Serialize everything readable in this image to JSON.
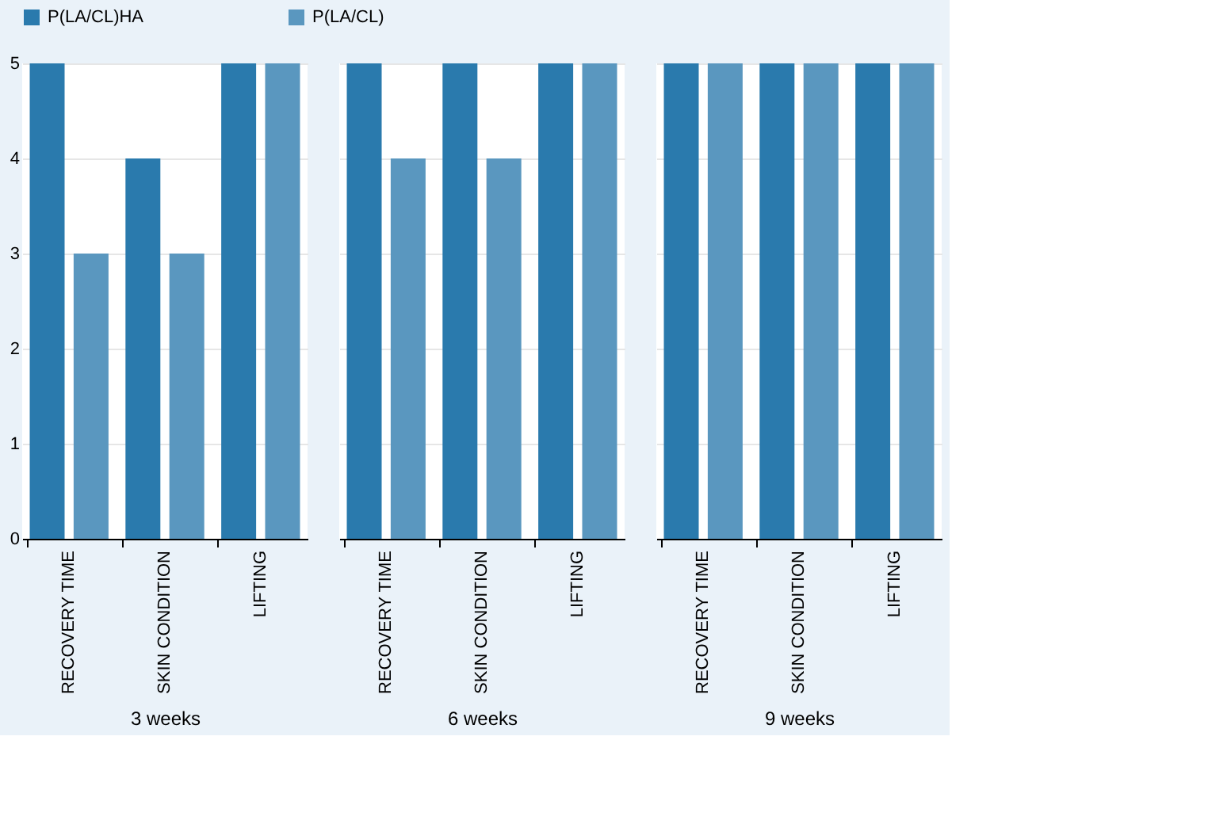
{
  "chart_data": [
    {
      "type": "bar",
      "xlabel": "3 weeks",
      "categories": [
        "RECOVERY TIME",
        "SKIN CONDITION",
        "LIFTING"
      ],
      "series": [
        {
          "name": "P(LA/CL)HA",
          "color": "#2a7aad",
          "values": [
            5,
            4,
            5
          ]
        },
        {
          "name": "P(LA/CL)",
          "color": "#5a97bf",
          "values": [
            3,
            3,
            5
          ]
        }
      ],
      "ylim": [
        0,
        5
      ],
      "yticks": [
        0,
        1,
        2,
        3,
        4,
        5
      ],
      "grid": "y",
      "legend": "top"
    },
    {
      "type": "bar",
      "xlabel": "6 weeks",
      "categories": [
        "RECOVERY TIME",
        "SKIN CONDITION",
        "LIFTING"
      ],
      "series": [
        {
          "name": "P(LA/CL)HA",
          "color": "#2a7aad",
          "values": [
            5,
            5,
            5
          ]
        },
        {
          "name": "P(LA/CL)",
          "color": "#5a97bf",
          "values": [
            4,
            4,
            5
          ]
        }
      ],
      "ylim": [
        0,
        5
      ],
      "yticks": [
        0,
        1,
        2,
        3,
        4,
        5
      ],
      "grid": "y",
      "legend": "top",
      "tick_labels": "x"
    },
    {
      "type": "bar",
      "xlabel": "9 weeks",
      "categories": [
        "RECOVERY TIME",
        "SKIN CONDITION",
        "LIFTING"
      ],
      "series": [
        {
          "name": "P(LA/CL)HA",
          "color": "#2a7aad",
          "values": [
            5,
            5,
            5
          ]
        },
        {
          "name": "P(LA/CL)",
          "color": "#5a97bf",
          "values": [
            5,
            5,
            5
          ]
        }
      ],
      "ylim": [
        0,
        5
      ],
      "yticks": [
        0,
        1,
        2,
        3,
        4,
        5
      ],
      "grid": "y",
      "legend": "top",
      "tick_labels": "x"
    }
  ]
}
